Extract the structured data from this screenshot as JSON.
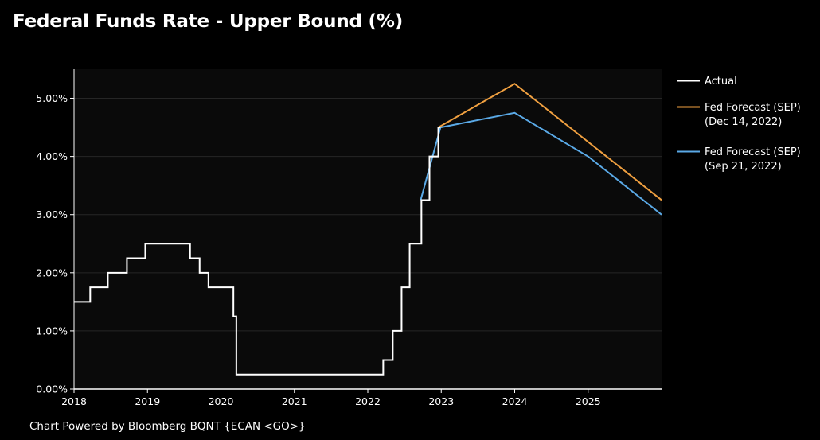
{
  "chart_data": {
    "type": "line",
    "title": "Federal Funds Rate - Upper Bound (%)",
    "footer": "Chart Powered by Bloomberg BQNT {ECAN <GO>}",
    "xlabel": "",
    "ylabel": "",
    "xlim": [
      2018.0,
      2026.0
    ],
    "ylim": [
      0,
      5.5
    ],
    "x_ticks": [
      {
        "value": 2018,
        "label": "2018"
      },
      {
        "value": 2019,
        "label": "2019"
      },
      {
        "value": 2020,
        "label": "2020"
      },
      {
        "value": 2021,
        "label": "2021"
      },
      {
        "value": 2022,
        "label": "2022"
      },
      {
        "value": 2023,
        "label": "2023"
      },
      {
        "value": 2024,
        "label": "2024"
      },
      {
        "value": 2025,
        "label": "2025"
      }
    ],
    "y_ticks": [
      {
        "value": 0,
        "label": "0.00%"
      },
      {
        "value": 1,
        "label": "1.00%"
      },
      {
        "value": 2,
        "label": "2.00%"
      },
      {
        "value": 3,
        "label": "3.00%"
      },
      {
        "value": 4,
        "label": "4.00%"
      },
      {
        "value": 5,
        "label": "5.00%"
      }
    ],
    "grid": true,
    "legend_position": "right",
    "colors": {
      "background": "#000000",
      "plot_background": "#0a0a0a",
      "grid": "#262626",
      "axis": "#ffffff"
    },
    "series": [
      {
        "name": "Actual",
        "legend_lines": [
          "Actual"
        ],
        "color": "#ffffff",
        "step": true,
        "points": [
          [
            2018.0,
            1.5
          ],
          [
            2018.22,
            1.75
          ],
          [
            2018.46,
            2.0
          ],
          [
            2018.72,
            2.25
          ],
          [
            2018.97,
            2.5
          ],
          [
            2019.58,
            2.25
          ],
          [
            2019.71,
            2.0
          ],
          [
            2019.83,
            1.75
          ],
          [
            2020.17,
            1.25
          ],
          [
            2020.21,
            0.25
          ],
          [
            2022.21,
            0.5
          ],
          [
            2022.34,
            1.0
          ],
          [
            2022.46,
            1.75
          ],
          [
            2022.57,
            2.5
          ],
          [
            2022.73,
            3.25
          ],
          [
            2022.84,
            4.0
          ],
          [
            2022.96,
            4.5
          ],
          [
            2022.99,
            4.5
          ]
        ]
      },
      {
        "name": "Fed Forecast (SEP) (Dec 14, 2022)",
        "legend_lines": [
          "Fed Forecast (SEP)",
          "(Dec 14, 2022)"
        ],
        "color": "#f0a040",
        "step": false,
        "points": [
          [
            2022.96,
            4.5
          ],
          [
            2024.0,
            5.25
          ],
          [
            2025.0,
            4.25
          ],
          [
            2026.0,
            3.25
          ]
        ]
      },
      {
        "name": "Fed Forecast (SEP) (Sep 21, 2022)",
        "legend_lines": [
          "Fed Forecast (SEP)",
          "(Sep 21, 2022)"
        ],
        "color": "#5aa9e6",
        "step": false,
        "points": [
          [
            2022.72,
            3.25
          ],
          [
            2022.99,
            4.5
          ],
          [
            2024.0,
            4.75
          ],
          [
            2025.0,
            4.0
          ],
          [
            2026.0,
            3.0
          ]
        ]
      }
    ]
  }
}
